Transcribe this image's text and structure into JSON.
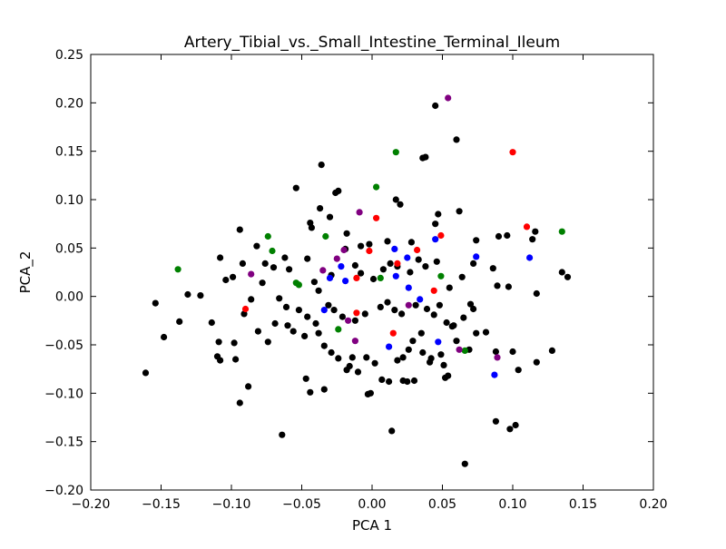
{
  "chart_data": {
    "type": "scatter",
    "title": "Artery_Tibial_vs._Small_Intestine_Terminal_Ileum",
    "xlabel": "PCA 1",
    "ylabel": "PCA_2",
    "xlim": [
      -0.2,
      0.2
    ],
    "ylim": [
      -0.2,
      0.25
    ],
    "x_ticks": [
      "−0.20",
      "−0.15",
      "−0.10",
      "−0.05",
      "0.00",
      "0.05",
      "0.10",
      "0.15",
      "0.20"
    ],
    "y_ticks": [
      "−0.20",
      "−0.15",
      "−0.10",
      "−0.05",
      "0.00",
      "0.05",
      "0.10",
      "0.15",
      "0.20",
      "0.25"
    ],
    "grid": false,
    "legend": "none",
    "series": [
      {
        "color": "#000000",
        "points": [
          [
            0.045,
            0.197
          ],
          [
            0.06,
            0.162
          ],
          [
            0.036,
            0.143
          ],
          [
            0.038,
            0.144
          ],
          [
            -0.036,
            0.136
          ],
          [
            -0.054,
            0.112
          ],
          [
            -0.026,
            0.107
          ],
          [
            -0.024,
            0.109
          ],
          [
            0.017,
            0.1
          ],
          [
            0.02,
            0.095
          ],
          [
            -0.037,
            0.091
          ],
          [
            -0.094,
            0.069
          ],
          [
            -0.082,
            0.052
          ],
          [
            -0.092,
            0.034
          ],
          [
            -0.108,
            0.04
          ],
          [
            -0.099,
            0.02
          ],
          [
            -0.104,
            0.017
          ],
          [
            -0.122,
            0.001
          ],
          [
            -0.131,
            0.002
          ],
          [
            -0.154,
            -0.007
          ],
          [
            -0.137,
            -0.026
          ],
          [
            -0.148,
            -0.042
          ],
          [
            -0.161,
            -0.079
          ],
          [
            -0.109,
            -0.047
          ],
          [
            -0.11,
            -0.062
          ],
          [
            -0.097,
            -0.065
          ],
          [
            -0.108,
            -0.066
          ],
          [
            -0.088,
            -0.093
          ],
          [
            -0.094,
            -0.11
          ],
          [
            -0.064,
            -0.143
          ],
          [
            -0.076,
            0.034
          ],
          [
            -0.078,
            0.014
          ],
          [
            -0.07,
            0.03
          ],
          [
            -0.062,
            0.04
          ],
          [
            -0.059,
            0.028
          ],
          [
            -0.046,
            0.039
          ],
          [
            -0.043,
            0.071
          ],
          [
            -0.044,
            0.076
          ],
          [
            -0.03,
            0.082
          ],
          [
            -0.018,
            0.065
          ],
          [
            -0.019,
            0.049
          ],
          [
            -0.008,
            0.052
          ],
          [
            -0.002,
            0.054
          ],
          [
            0.011,
            0.057
          ],
          [
            0.028,
            0.056
          ],
          [
            0.045,
            0.075
          ],
          [
            0.047,
            0.085
          ],
          [
            0.062,
            0.088
          ],
          [
            0.074,
            0.058
          ],
          [
            0.09,
            0.062
          ],
          [
            0.096,
            0.063
          ],
          [
            0.114,
            0.059
          ],
          [
            0.116,
            0.067
          ],
          [
            0.072,
            0.034
          ],
          [
            0.086,
            0.029
          ],
          [
            0.097,
            0.01
          ],
          [
            0.089,
            0.011
          ],
          [
            0.117,
            0.003
          ],
          [
            0.135,
            0.025
          ],
          [
            0.139,
            0.02
          ],
          [
            0.064,
            0.02
          ],
          [
            0.055,
            0.009
          ],
          [
            0.07,
            -0.008
          ],
          [
            0.072,
            -0.013
          ],
          [
            0.065,
            -0.022
          ],
          [
            0.074,
            -0.038
          ],
          [
            0.057,
            -0.031
          ],
          [
            0.06,
            -0.046
          ],
          [
            0.081,
            -0.037
          ],
          [
            0.069,
            -0.055
          ],
          [
            0.088,
            -0.057
          ],
          [
            0.1,
            -0.057
          ],
          [
            0.104,
            -0.076
          ],
          [
            0.117,
            -0.068
          ],
          [
            0.128,
            -0.056
          ],
          [
            0.088,
            -0.129
          ],
          [
            0.098,
            -0.137
          ],
          [
            0.102,
            -0.133
          ],
          [
            0.066,
            -0.173
          ],
          [
            0.014,
            -0.139
          ],
          [
            -0.003,
            -0.101
          ],
          [
            -0.001,
            -0.1
          ],
          [
            -0.034,
            -0.096
          ],
          [
            -0.047,
            -0.085
          ],
          [
            -0.044,
            -0.099
          ],
          [
            -0.018,
            -0.076
          ],
          [
            -0.016,
            -0.072
          ],
          [
            -0.01,
            -0.078
          ],
          [
            0.007,
            -0.086
          ],
          [
            0.012,
            -0.088
          ],
          [
            0.025,
            -0.088
          ],
          [
            0.022,
            -0.087
          ],
          [
            0.03,
            -0.087
          ],
          [
            0.041,
            -0.068
          ],
          [
            0.042,
            -0.064
          ],
          [
            0.036,
            -0.058
          ],
          [
            0.049,
            -0.06
          ],
          [
            0.051,
            -0.071
          ],
          [
            0.054,
            -0.082
          ],
          [
            0.052,
            -0.084
          ],
          [
            -0.06,
            -0.03
          ],
          [
            -0.056,
            -0.036
          ],
          [
            -0.048,
            -0.041
          ],
          [
            -0.038,
            -0.038
          ],
          [
            -0.034,
            -0.051
          ],
          [
            -0.029,
            -0.058
          ],
          [
            -0.024,
            -0.064
          ],
          [
            -0.014,
            -0.063
          ],
          [
            -0.004,
            -0.063
          ],
          [
            0.002,
            -0.069
          ],
          [
            0.018,
            -0.066
          ],
          [
            0.022,
            -0.063
          ],
          [
            0.026,
            -0.055
          ],
          [
            0.035,
            -0.038
          ],
          [
            0.029,
            -0.046
          ],
          [
            -0.066,
            -0.002
          ],
          [
            -0.061,
            -0.011
          ],
          [
            -0.052,
            -0.014
          ],
          [
            -0.046,
            -0.021
          ],
          [
            -0.04,
            -0.028
          ],
          [
            -0.031,
            -0.009
          ],
          [
            -0.027,
            -0.014
          ],
          [
            -0.021,
            -0.021
          ],
          [
            -0.012,
            -0.025
          ],
          [
            -0.005,
            -0.018
          ],
          [
            0.006,
            -0.011
          ],
          [
            0.011,
            -0.006
          ],
          [
            0.016,
            -0.014
          ],
          [
            0.021,
            -0.018
          ],
          [
            0.031,
            -0.009
          ],
          [
            0.039,
            -0.013
          ],
          [
            0.044,
            -0.019
          ],
          [
            0.048,
            -0.009
          ],
          [
            0.053,
            -0.027
          ],
          [
            0.058,
            -0.03
          ],
          [
            -0.012,
            0.032
          ],
          [
            -0.008,
            0.024
          ],
          [
            0.001,
            0.018
          ],
          [
            0.008,
            0.028
          ],
          [
            0.013,
            0.034
          ],
          [
            0.018,
            0.031
          ],
          [
            0.027,
            0.025
          ],
          [
            0.033,
            0.038
          ],
          [
            0.038,
            0.031
          ],
          [
            0.046,
            0.036
          ],
          [
            -0.086,
            -0.003
          ],
          [
            -0.091,
            -0.018
          ],
          [
            -0.081,
            -0.036
          ],
          [
            -0.074,
            -0.047
          ],
          [
            -0.069,
            -0.028
          ],
          [
            -0.114,
            -0.027
          ],
          [
            -0.098,
            -0.048
          ],
          [
            -0.038,
            0.006
          ],
          [
            -0.041,
            0.015
          ],
          [
            -0.029,
            0.022
          ]
        ]
      },
      {
        "color": "#ff0000",
        "points": [
          [
            0.1,
            0.149
          ],
          [
            0.11,
            0.072
          ],
          [
            0.049,
            0.063
          ],
          [
            0.032,
            0.048
          ],
          [
            0.018,
            0.034
          ],
          [
            0.003,
            0.081
          ],
          [
            -0.002,
            0.047
          ],
          [
            -0.011,
            0.019
          ],
          [
            0.044,
            0.006
          ],
          [
            -0.011,
            -0.017
          ],
          [
            0.015,
            -0.038
          ],
          [
            -0.09,
            -0.013
          ]
        ]
      },
      {
        "color": "#0000ff",
        "points": [
          [
            0.016,
            0.049
          ],
          [
            0.025,
            0.04
          ],
          [
            0.045,
            0.059
          ],
          [
            0.074,
            0.041
          ],
          [
            0.112,
            0.04
          ],
          [
            -0.03,
            0.019
          ],
          [
            -0.022,
            0.031
          ],
          [
            -0.019,
            0.016
          ],
          [
            0.017,
            0.021
          ],
          [
            0.026,
            0.009
          ],
          [
            0.034,
            -0.003
          ],
          [
            -0.034,
            -0.014
          ],
          [
            0.012,
            -0.052
          ],
          [
            0.047,
            -0.047
          ],
          [
            0.087,
            -0.081
          ]
        ]
      },
      {
        "color": "#008000",
        "points": [
          [
            0.017,
            0.149
          ],
          [
            0.003,
            0.113
          ],
          [
            -0.074,
            0.062
          ],
          [
            -0.071,
            0.047
          ],
          [
            -0.033,
            0.062
          ],
          [
            0.135,
            0.067
          ],
          [
            -0.138,
            0.028
          ],
          [
            -0.054,
            0.014
          ],
          [
            -0.052,
            0.012
          ],
          [
            -0.024,
            -0.034
          ],
          [
            0.006,
            0.019
          ],
          [
            0.049,
            0.021
          ],
          [
            0.066,
            -0.056
          ]
        ]
      },
      {
        "color": "#800080",
        "points": [
          [
            0.054,
            0.205
          ],
          [
            -0.009,
            0.087
          ],
          [
            -0.02,
            0.048
          ],
          [
            -0.025,
            0.039
          ],
          [
            -0.035,
            0.027
          ],
          [
            -0.086,
            0.023
          ],
          [
            0.026,
            -0.009
          ],
          [
            -0.017,
            -0.025
          ],
          [
            -0.012,
            -0.046
          ],
          [
            0.062,
            -0.055
          ],
          [
            0.089,
            -0.063
          ]
        ]
      }
    ]
  }
}
